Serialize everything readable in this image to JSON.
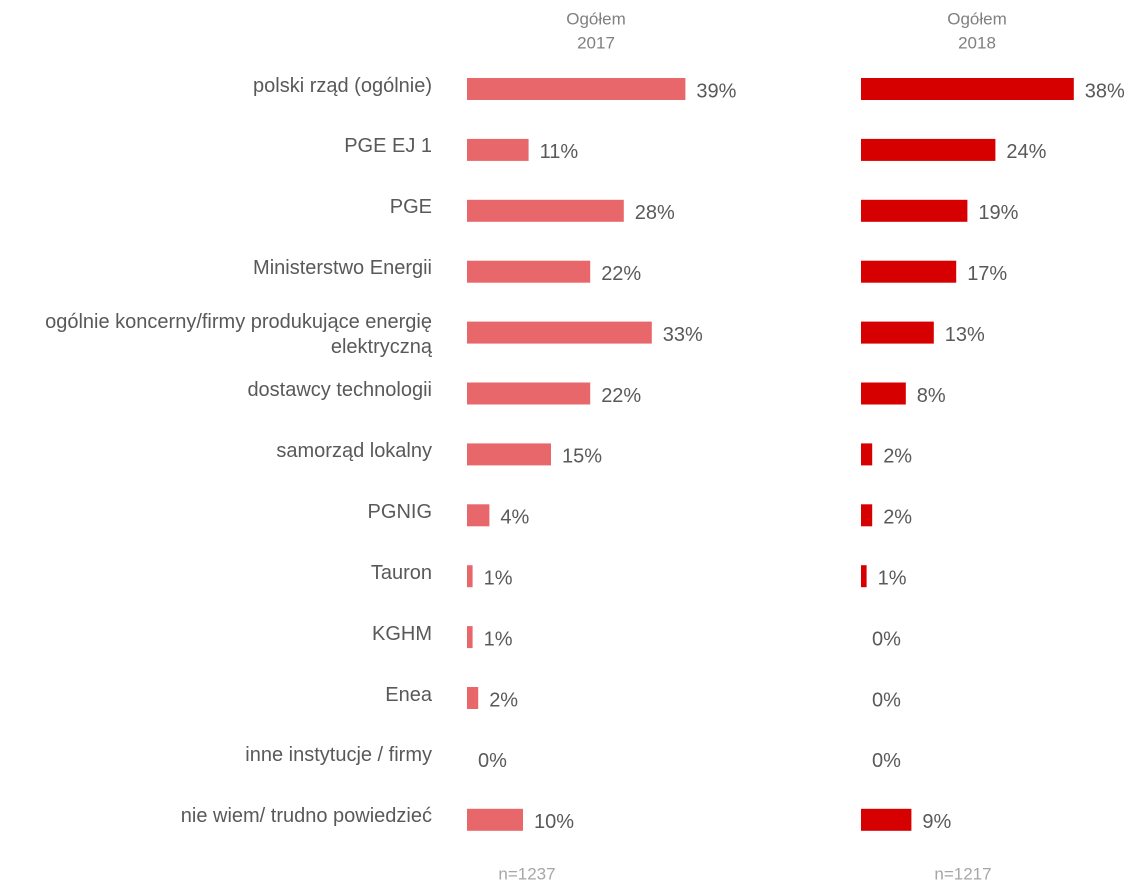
{
  "chart_data": {
    "type": "bar",
    "orientation": "horizontal",
    "categories": [
      "polski rząd (ogólnie)",
      "PGE EJ 1",
      "PGE",
      "Ministerstwo Energii",
      "ogólnie koncerny/firmy produkujące energię elektryczną",
      "dostawcy technologii",
      "samorząd lokalny",
      "PGNIG",
      "Tauron",
      "KGHM",
      "Enea",
      "inne instytucje / firmy",
      "nie wiem/ trudno powiedzieć"
    ],
    "xlim": [
      0,
      40
    ],
    "series": [
      {
        "name": "Ogółem",
        "year": "2017",
        "note": "n=1237",
        "color": "#e8676a",
        "values": [
          39,
          11,
          28,
          22,
          33,
          22,
          15,
          4,
          1,
          1,
          2,
          0,
          10
        ],
        "value_labels": [
          "39%",
          "11%",
          "28%",
          "22%",
          "33%",
          "22%",
          "15%",
          "4%",
          "1%",
          "1%",
          "2%",
          "0%",
          "10%"
        ]
      },
      {
        "name": "Ogółem",
        "year": "2018",
        "note": "n=1217",
        "color": "#d60000",
        "values": [
          38,
          24,
          19,
          17,
          13,
          8,
          2,
          2,
          1,
          0,
          0,
          0,
          9
        ],
        "value_labels": [
          "38%",
          "24%",
          "19%",
          "17%",
          "13%",
          "8%",
          "2%",
          "2%",
          "1%",
          "0%",
          "0%",
          "0%",
          "9%"
        ]
      }
    ]
  }
}
